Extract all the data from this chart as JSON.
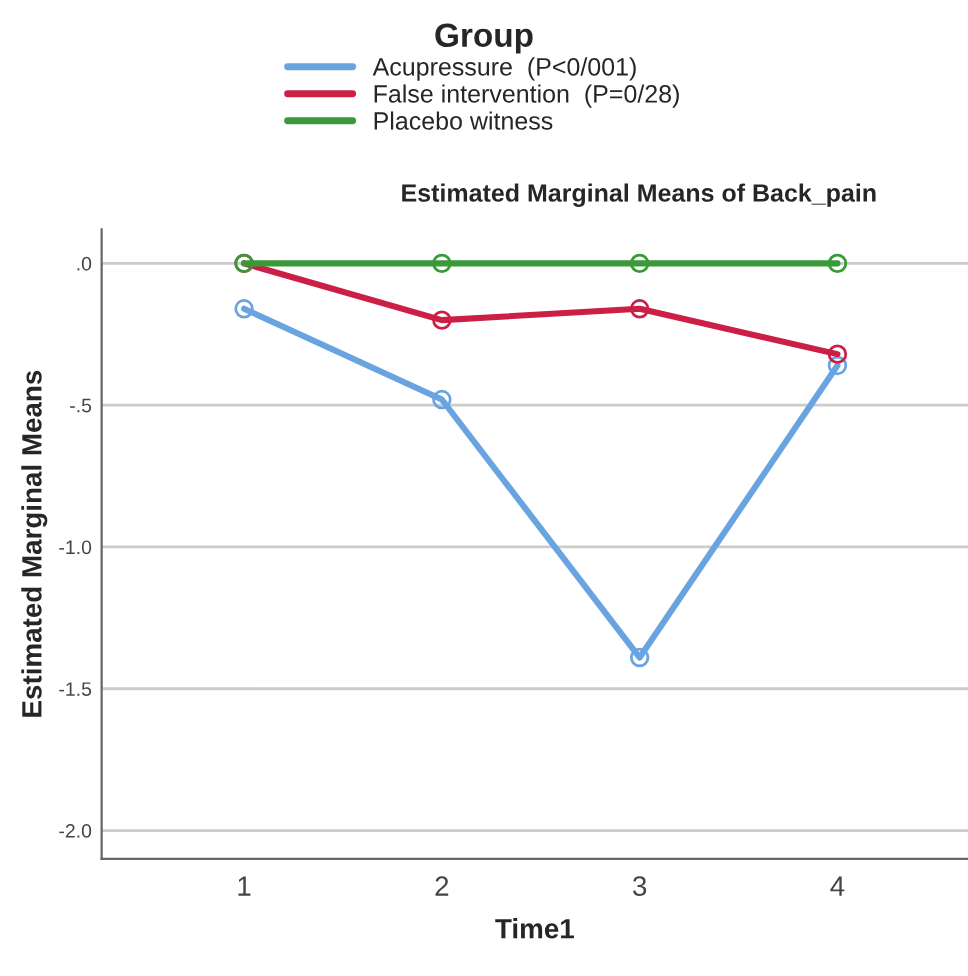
{
  "chart_data": {
    "type": "line",
    "title": "Estimated Marginal Means of Back_pain",
    "xlabel": "Time1",
    "ylabel": "Estimated Marginal Means",
    "legend_title": "Group",
    "legend": "top",
    "x": [
      1,
      2,
      3,
      4
    ],
    "xlim": [
      0.28,
      4.66
    ],
    "xticks": [
      1,
      2,
      3,
      4
    ],
    "ylim": [
      -2.1,
      0.12
    ],
    "yticks": [
      {
        "value": 0,
        "label": ".0"
      },
      {
        "value": -0.5,
        "label": "-.5"
      },
      {
        "value": -1.0,
        "label": "-1.0"
      },
      {
        "value": -1.5,
        "label": "-1.5"
      },
      {
        "value": -2.0,
        "label": "-2.0"
      }
    ],
    "grid": "y",
    "marker": "circle",
    "line_style": "solid",
    "series": [
      {
        "name": "Acupressure  (P<0/001)",
        "color": "#6aa4e0",
        "values": [
          -0.16,
          -0.48,
          -1.39,
          -0.36
        ]
      },
      {
        "name": "False intervention  (P=0/28)",
        "color": "#cc1f45",
        "values": [
          0,
          -0.2,
          -0.16,
          -0.32
        ]
      },
      {
        "name": "Placebo witness",
        "color": "#3a9a3a",
        "values": [
          0,
          0,
          0,
          0
        ]
      }
    ]
  }
}
